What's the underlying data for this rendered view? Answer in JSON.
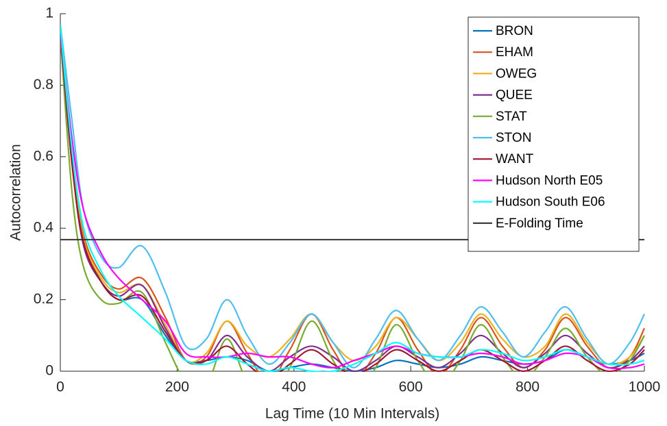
{
  "chart_data": {
    "type": "line",
    "xlabel": "Lag Time (10 Min Intervals)",
    "ylabel": "Autocorrelation",
    "xlim": [
      0,
      1000
    ],
    "xticks": [
      0,
      200,
      400,
      600,
      800,
      1000
    ],
    "ylim": [
      0,
      1
    ],
    "yticks": [
      0,
      0.2,
      0.4,
      0.6,
      0.8,
      1
    ],
    "legend": "top-right",
    "x": [
      0,
      20,
      40,
      70,
      100,
      140,
      180,
      215,
      250,
      285,
      320,
      357,
      393,
      430,
      467,
      503,
      540,
      575,
      612,
      648,
      685,
      720,
      757,
      793,
      830,
      865,
      902,
      938,
      975,
      1000
    ],
    "series": [
      {
        "name": "BRON",
        "color": "#0072BD",
        "values": [
          0.95,
          0.6,
          0.37,
          0.25,
          0.2,
          0.2,
          0.1,
          0.03,
          0.03,
          0.04,
          0.03,
          0.0,
          0.01,
          0.02,
          0.01,
          0.0,
          0.01,
          0.03,
          0.02,
          0.01,
          0.02,
          0.04,
          0.03,
          0.02,
          0.03,
          0.06,
          0.04,
          0.02,
          0.03,
          0.05
        ]
      },
      {
        "name": "EHAM",
        "color": "#D95319",
        "values": [
          0.95,
          0.6,
          0.38,
          0.27,
          0.23,
          0.26,
          0.15,
          0.03,
          0.04,
          0.14,
          0.05,
          -0.03,
          0.06,
          0.16,
          0.06,
          -0.02,
          0.05,
          0.15,
          0.06,
          -0.01,
          0.06,
          0.15,
          0.07,
          0.01,
          0.06,
          0.15,
          0.07,
          0.01,
          0.04,
          0.12
        ]
      },
      {
        "name": "OWEG",
        "color": "#EDB120",
        "values": [
          0.95,
          0.6,
          0.37,
          0.26,
          0.22,
          0.24,
          0.13,
          0.03,
          0.05,
          0.14,
          0.07,
          0.04,
          0.09,
          0.16,
          0.08,
          0.03,
          0.07,
          0.15,
          0.09,
          0.03,
          0.08,
          0.16,
          0.09,
          0.04,
          0.07,
          0.16,
          0.08,
          0.02,
          0.04,
          0.1
        ]
      },
      {
        "name": "QUEE",
        "color": "#7E2F8E",
        "values": [
          0.95,
          0.58,
          0.35,
          0.25,
          0.21,
          0.24,
          0.12,
          0.03,
          0.03,
          0.1,
          0.04,
          0.0,
          0.04,
          0.07,
          0.04,
          0.0,
          0.03,
          0.07,
          0.04,
          0.01,
          0.05,
          0.1,
          0.05,
          0.01,
          0.05,
          0.1,
          0.05,
          0.01,
          0.03,
          0.07
        ]
      },
      {
        "name": "STAT",
        "color": "#77AC30",
        "values": [
          0.94,
          0.5,
          0.29,
          0.2,
          0.19,
          0.22,
          0.08,
          -0.03,
          -0.04,
          0.09,
          -0.03,
          -0.07,
          0.01,
          0.14,
          0.03,
          -0.05,
          0.01,
          0.13,
          0.03,
          -0.04,
          0.03,
          0.13,
          0.04,
          -0.02,
          0.04,
          0.12,
          0.04,
          -0.01,
          0.03,
          0.1
        ]
      },
      {
        "name": "STON",
        "color": "#4DBEEE",
        "values": [
          0.97,
          0.7,
          0.45,
          0.32,
          0.29,
          0.35,
          0.22,
          0.07,
          0.09,
          0.2,
          0.1,
          0.02,
          0.08,
          0.16,
          0.08,
          0.01,
          0.09,
          0.17,
          0.09,
          0.03,
          0.1,
          0.18,
          0.11,
          0.04,
          0.11,
          0.18,
          0.09,
          0.02,
          0.08,
          0.16
        ]
      },
      {
        "name": "WANT",
        "color": "#A2142F",
        "values": [
          0.95,
          0.58,
          0.36,
          0.25,
          0.2,
          0.21,
          0.11,
          0.03,
          0.03,
          0.07,
          0.02,
          -0.02,
          0.02,
          0.06,
          0.02,
          -0.01,
          0.02,
          0.06,
          0.03,
          0.0,
          0.03,
          0.06,
          0.03,
          0.0,
          0.03,
          0.07,
          0.03,
          0.0,
          0.02,
          0.06
        ]
      },
      {
        "name": "Hudson North E05",
        "color": "#FF00FF",
        "values": [
          0.95,
          0.65,
          0.45,
          0.33,
          0.26,
          0.2,
          0.14,
          0.05,
          0.04,
          0.04,
          0.05,
          0.04,
          0.04,
          0.02,
          0.01,
          0.03,
          0.05,
          0.07,
          0.05,
          0.04,
          0.04,
          0.05,
          0.04,
          0.02,
          0.03,
          0.05,
          0.04,
          0.01,
          0.01,
          0.02
        ]
      },
      {
        "name": "Hudson South E06",
        "color": "#00FFFF",
        "values": [
          0.97,
          0.62,
          0.4,
          0.28,
          0.21,
          0.15,
          0.09,
          0.03,
          0.02,
          0.04,
          0.02,
          0.0,
          0.01,
          0.0,
          0.0,
          0.02,
          0.05,
          0.08,
          0.05,
          0.04,
          0.04,
          0.06,
          0.05,
          0.03,
          0.04,
          0.06,
          0.04,
          0.02,
          0.02,
          0.03
        ]
      }
    ],
    "hline": {
      "name": "E-Folding Time",
      "value": 0.368,
      "color": "#333333"
    }
  }
}
